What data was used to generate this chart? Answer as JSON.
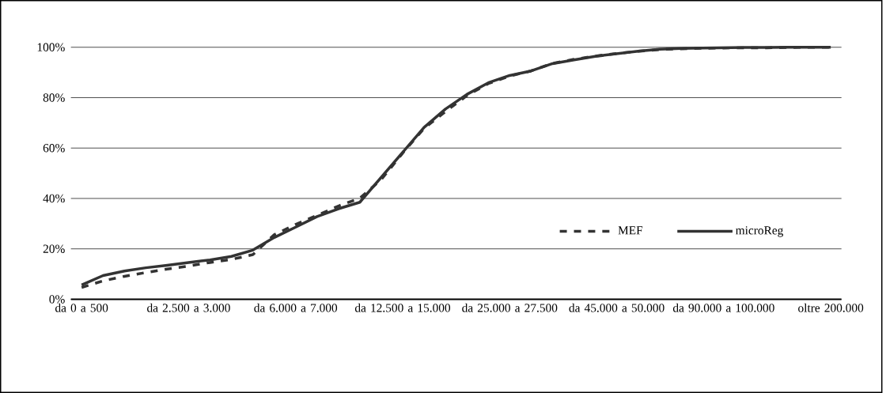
{
  "chart_data": {
    "type": "line",
    "categories": [
      "da 0 a 500",
      null,
      null,
      null,
      null,
      "da 2.500 a 3.000",
      null,
      null,
      null,
      null,
      "da 6.000 a 7.000",
      null,
      null,
      null,
      null,
      "da 12.500 a 15.000",
      null,
      null,
      null,
      null,
      "da 25.000 a 27.500",
      null,
      null,
      null,
      null,
      "da 45.000 a 50.000",
      null,
      null,
      null,
      null,
      "da 90.000 a 100.000",
      null,
      null,
      null,
      null,
      "oltre 200.000"
    ],
    "series": [
      {
        "name": "MEF",
        "color": "#333333",
        "line_style": "dashed",
        "values": [
          4.7,
          7.3,
          9.1,
          10.6,
          12.0,
          13.2,
          14.6,
          15.8,
          17.7,
          25.6,
          29.7,
          33.3,
          37.0,
          40.1,
          47.5,
          58.0,
          67.8,
          74.5,
          80.8,
          85.6,
          88.6,
          90.6,
          93.6,
          95.2,
          96.5,
          97.5,
          98.4,
          99.1,
          99.4,
          99.6,
          99.7,
          99.8,
          99.8,
          99.9,
          100,
          100
        ]
      },
      {
        "name": "microReg",
        "color": "#333333",
        "line_style": "solid",
        "values": [
          5.7,
          9.4,
          11.2,
          12.5,
          13.5,
          14.6,
          15.6,
          17.0,
          19.5,
          24.5,
          28.6,
          32.8,
          35.9,
          38.5,
          48.4,
          58.3,
          68.2,
          75.5,
          81.3,
          85.9,
          88.8,
          90.6,
          93.5,
          95.0,
          96.4,
          97.4,
          98.4,
          99.2,
          99.5,
          99.7,
          99.8,
          99.9,
          99.9,
          100,
          100,
          100
        ]
      }
    ],
    "ylim": [
      0,
      100
    ],
    "yticks": [
      {
        "value": 0,
        "label": "0%"
      },
      {
        "value": 20,
        "label": "20%"
      },
      {
        "value": 40,
        "label": "40%"
      },
      {
        "value": 60,
        "label": "60%"
      },
      {
        "value": 80,
        "label": "80%"
      },
      {
        "value": 100,
        "label": "100%"
      }
    ],
    "grid": "y",
    "legend": "bottom right",
    "marker": "none"
  }
}
